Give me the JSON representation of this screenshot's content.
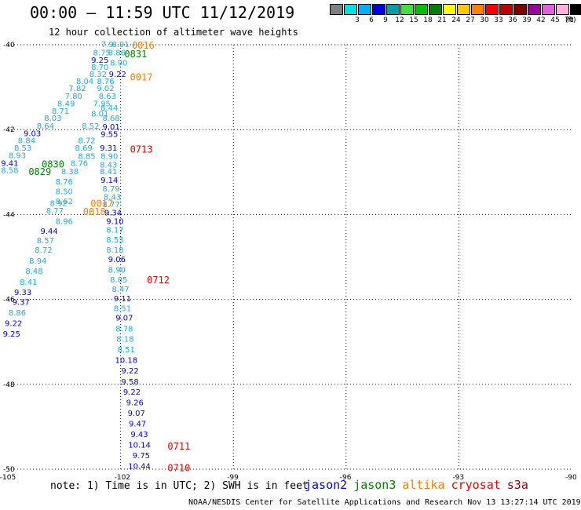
{
  "header": {
    "title": "00:00 – 11:59 UTC 11/12/2019",
    "subtitle": "12 hour collection of altimeter wave heights"
  },
  "legend": {
    "unit": "(ft)",
    "swatches": [
      {
        "label": "",
        "color": "#808080"
      },
      {
        "label": "3",
        "color": "#00e0e0"
      },
      {
        "label": "6",
        "color": "#00b0f0"
      },
      {
        "label": "9",
        "color": "#0000e0"
      },
      {
        "label": "12",
        "color": "#00a0a0"
      },
      {
        "label": "15",
        "color": "#40e040"
      },
      {
        "label": "18",
        "color": "#00c000"
      },
      {
        "label": "21",
        "color": "#008000"
      },
      {
        "label": "24",
        "color": "#ffff00"
      },
      {
        "label": "27",
        "color": "#ffc800"
      },
      {
        "label": "30",
        "color": "#ff8000"
      },
      {
        "label": "33",
        "color": "#ff0000"
      },
      {
        "label": "36",
        "color": "#c00000"
      },
      {
        "label": "39",
        "color": "#800000"
      },
      {
        "label": "42",
        "color": "#a000a0"
      },
      {
        "label": "45",
        "color": "#e060e0"
      },
      {
        "label": "70",
        "color": "#ffb0e0"
      },
      {
        "label": "",
        "color": "#000000"
      }
    ]
  },
  "map": {
    "lon_range": [
      -105,
      -90
    ],
    "lat_range": [
      -50,
      -40
    ],
    "lon_ticks": [
      "-105",
      "-102",
      "-99",
      "-96",
      "-93",
      "-90"
    ],
    "lat_ticks": [
      "-40",
      "-42",
      "-44",
      "-46",
      "-48",
      "-50"
    ],
    "grid": "dotted",
    "colors": {
      "light": "#20a8d8",
      "dark": "#0000cc",
      "jason3": "#008000",
      "altika": "#f08000",
      "cryosat": "#e00000"
    }
  },
  "observations": [
    {
      "lon": -102.35,
      "lat": -39.98,
      "swh": "7.9"
    },
    {
      "lon": -102.0,
      "lat": -39.98,
      "swh": "8.91"
    },
    {
      "lon": -102.5,
      "lat": -40.18,
      "swh": "8.75"
    },
    {
      "lon": -102.1,
      "lat": -40.18,
      "swh": "8.86"
    },
    {
      "lon": -102.55,
      "lat": -40.35,
      "swh": "9.25",
      "dark": true
    },
    {
      "lon": -102.05,
      "lat": -40.42,
      "swh": "8.90"
    },
    {
      "lon": -102.55,
      "lat": -40.52,
      "swh": "8.70"
    },
    {
      "lon": -102.6,
      "lat": -40.68,
      "swh": "8.32"
    },
    {
      "lon": -102.08,
      "lat": -40.68,
      "swh": "9.22",
      "dark": true
    },
    {
      "lon": -102.95,
      "lat": -40.85,
      "swh": "8.04"
    },
    {
      "lon": -102.4,
      "lat": -40.85,
      "swh": "8.76"
    },
    {
      "lon": -103.15,
      "lat": -41.02,
      "swh": "7.82"
    },
    {
      "lon": -102.4,
      "lat": -41.02,
      "swh": "9.02"
    },
    {
      "lon": -103.25,
      "lat": -41.2,
      "swh": "7.80"
    },
    {
      "lon": -102.35,
      "lat": -41.2,
      "swh": "8.63"
    },
    {
      "lon": -103.45,
      "lat": -41.38,
      "swh": "8.49"
    },
    {
      "lon": -102.5,
      "lat": -41.38,
      "swh": "7.95"
    },
    {
      "lon": -102.3,
      "lat": -41.48,
      "swh": "8.44"
    },
    {
      "lon": -103.6,
      "lat": -41.55,
      "swh": "8.71"
    },
    {
      "lon": -102.55,
      "lat": -41.62,
      "swh": "8.01"
    },
    {
      "lon": -102.25,
      "lat": -41.72,
      "swh": "8.68"
    },
    {
      "lon": -103.8,
      "lat": -41.72,
      "swh": "8.03"
    },
    {
      "lon": -104.0,
      "lat": -41.9,
      "swh": "8.64"
    },
    {
      "lon": -102.8,
      "lat": -41.9,
      "swh": "8.52"
    },
    {
      "lon": -102.25,
      "lat": -41.92,
      "swh": "9.01",
      "dark": true
    },
    {
      "lon": -104.35,
      "lat": -42.08,
      "swh": "9.03",
      "dark": true
    },
    {
      "lon": -102.3,
      "lat": -42.1,
      "swh": "9.55",
      "dark": true
    },
    {
      "lon": -102.9,
      "lat": -42.25,
      "swh": "8.72"
    },
    {
      "lon": -104.5,
      "lat": -42.25,
      "swh": "8.84"
    },
    {
      "lon": -102.98,
      "lat": -42.42,
      "swh": "8.69"
    },
    {
      "lon": -102.32,
      "lat": -42.42,
      "swh": "9.31",
      "dark": true
    },
    {
      "lon": -104.6,
      "lat": -42.42,
      "swh": "8.53"
    },
    {
      "lon": -104.75,
      "lat": -42.6,
      "swh": "8.93"
    },
    {
      "lon": -102.9,
      "lat": -42.62,
      "swh": "8.85"
    },
    {
      "lon": -102.3,
      "lat": -42.62,
      "swh": "8.90"
    },
    {
      "lon": -104.95,
      "lat": -42.78,
      "swh": "9.41",
      "dark": true
    },
    {
      "lon": -103.1,
      "lat": -42.78,
      "swh": "8.76"
    },
    {
      "lon": -102.32,
      "lat": -42.82,
      "swh": "8.43"
    },
    {
      "lon": -104.95,
      "lat": -42.95,
      "swh": "8.58"
    },
    {
      "lon": -103.35,
      "lat": -42.98,
      "swh": "8.38"
    },
    {
      "lon": -102.32,
      "lat": -42.98,
      "swh": "8.41"
    },
    {
      "lon": -102.3,
      "lat": -43.18,
      "swh": "9.14",
      "dark": true
    },
    {
      "lon": -103.5,
      "lat": -43.22,
      "swh": "8.76"
    },
    {
      "lon": -102.25,
      "lat": -43.38,
      "swh": "8.79"
    },
    {
      "lon": -103.5,
      "lat": -43.45,
      "swh": "8.50"
    },
    {
      "lon": -102.22,
      "lat": -43.58,
      "swh": "8.43"
    },
    {
      "lon": -103.5,
      "lat": -43.68,
      "swh": "8.62"
    },
    {
      "lon": -103.65,
      "lat": -43.72,
      "swh": "8.92"
    },
    {
      "lon": -102.25,
      "lat": -43.75,
      "swh": "8.77"
    },
    {
      "lon": -103.75,
      "lat": -43.9,
      "swh": "8.77"
    },
    {
      "lon": -102.2,
      "lat": -43.95,
      "swh": "9.34",
      "dark": true
    },
    {
      "lon": -103.5,
      "lat": -44.15,
      "swh": "8.96"
    },
    {
      "lon": -102.15,
      "lat": -44.15,
      "swh": "9.10",
      "dark": true
    },
    {
      "lon": -103.9,
      "lat": -44.38,
      "swh": "9.44",
      "dark": true
    },
    {
      "lon": -102.15,
      "lat": -44.35,
      "swh": "8.17"
    },
    {
      "lon": -104.0,
      "lat": -44.6,
      "swh": "8.57"
    },
    {
      "lon": -102.15,
      "lat": -44.58,
      "swh": "8.53"
    },
    {
      "lon": -104.05,
      "lat": -44.82,
      "swh": "8.72"
    },
    {
      "lon": -102.15,
      "lat": -44.82,
      "swh": "8.18"
    },
    {
      "lon": -104.2,
      "lat": -45.08,
      "swh": "8.94"
    },
    {
      "lon": -102.1,
      "lat": -45.05,
      "swh": "9.06",
      "dark": true
    },
    {
      "lon": -104.3,
      "lat": -45.32,
      "swh": "8.48"
    },
    {
      "lon": -102.1,
      "lat": -45.3,
      "swh": "8.90"
    },
    {
      "lon": -104.45,
      "lat": -45.58,
      "swh": "8.41"
    },
    {
      "lon": -102.05,
      "lat": -45.53,
      "swh": "8.85"
    },
    {
      "lon": -102.0,
      "lat": -45.75,
      "swh": "8.47"
    },
    {
      "lon": -104.6,
      "lat": -45.82,
      "swh": "9.33",
      "dark": true
    },
    {
      "lon": -101.95,
      "lat": -45.97,
      "swh": "9.11",
      "dark": true
    },
    {
      "lon": -104.65,
      "lat": -46.05,
      "swh": "9.37",
      "dark": true
    },
    {
      "lon": -101.95,
      "lat": -46.2,
      "swh": "8.51"
    },
    {
      "lon": -104.75,
      "lat": -46.3,
      "swh": "8.86"
    },
    {
      "lon": -101.9,
      "lat": -46.42,
      "swh": "9.07",
      "dark": true
    },
    {
      "lon": -104.85,
      "lat": -46.55,
      "swh": "9.22",
      "dark": true
    },
    {
      "lon": -101.9,
      "lat": -46.68,
      "swh": "8.78"
    },
    {
      "lon": -104.9,
      "lat": -46.8,
      "swh": "9.25",
      "dark": true
    },
    {
      "lon": -101.88,
      "lat": -46.92,
      "swh": "8.18"
    },
    {
      "lon": -101.85,
      "lat": -47.17,
      "swh": "8.51"
    },
    {
      "lon": -101.85,
      "lat": -47.42,
      "swh": "10.18",
      "dark": true
    },
    {
      "lon": -101.75,
      "lat": -47.67,
      "swh": "9.22",
      "dark": true
    },
    {
      "lon": -101.75,
      "lat": -47.93,
      "swh": "9.58",
      "dark": true
    },
    {
      "lon": -101.7,
      "lat": -48.17,
      "swh": "9.22",
      "dark": true
    },
    {
      "lon": -101.62,
      "lat": -48.42,
      "swh": "9.26",
      "dark": true
    },
    {
      "lon": -101.58,
      "lat": -48.67,
      "swh": "9.07",
      "dark": true
    },
    {
      "lon": -101.55,
      "lat": -48.92,
      "swh": "9.47",
      "dark": true
    },
    {
      "lon": -101.5,
      "lat": -49.17,
      "swh": "9.43",
      "dark": true
    },
    {
      "lon": -101.5,
      "lat": -49.42,
      "swh": "10.14",
      "dark": true
    },
    {
      "lon": -101.45,
      "lat": -49.67,
      "swh": "9.75",
      "dark": true
    },
    {
      "lon": -101.5,
      "lat": -49.92,
      "swh": "10.44",
      "dark": true
    }
  ],
  "pass_times": [
    {
      "text": "0016",
      "sat": "altika",
      "lon": -101.7,
      "lat": -40.0
    },
    {
      "text": "0831",
      "sat": "jason3",
      "lon": -101.9,
      "lat": -40.2
    },
    {
      "text": "0017",
      "sat": "altika",
      "lon": -101.75,
      "lat": -40.75
    },
    {
      "text": "0713",
      "sat": "cryosat",
      "lon": -101.75,
      "lat": -42.45
    },
    {
      "text": "0830",
      "sat": "jason3",
      "lon": -104.1,
      "lat": -42.8
    },
    {
      "text": "0829",
      "sat": "jason3",
      "lon": -104.45,
      "lat": -42.98
    },
    {
      "text": "0017",
      "sat": "altika",
      "lon": -102.8,
      "lat": -43.72
    },
    {
      "text": "0018",
      "sat": "altika",
      "lon": -103.0,
      "lat": -43.92
    },
    {
      "text": "0712",
      "sat": "cryosat",
      "lon": -101.3,
      "lat": -45.53
    },
    {
      "text": "0711",
      "sat": "cryosat",
      "lon": -100.75,
      "lat": -49.45
    },
    {
      "text": "0710",
      "sat": "cryosat",
      "lon": -100.75,
      "lat": -49.95
    }
  ],
  "footer": {
    "note": "note: 1) Time is in UTC; 2) SWH is in feet",
    "satellites": [
      {
        "name": "jason2",
        "color": "#0000cc"
      },
      {
        "name": "jason3",
        "color": "#008000"
      },
      {
        "name": "altika",
        "color": "#f08000"
      },
      {
        "name": "cryosat",
        "color": "#e00000"
      },
      {
        "name": "s3a",
        "color": "#800000"
      }
    ],
    "credit": "NOAA/NESDIS Center for Satellite Applications and Research   Nov 13 13:27:14 UTC 2019"
  }
}
